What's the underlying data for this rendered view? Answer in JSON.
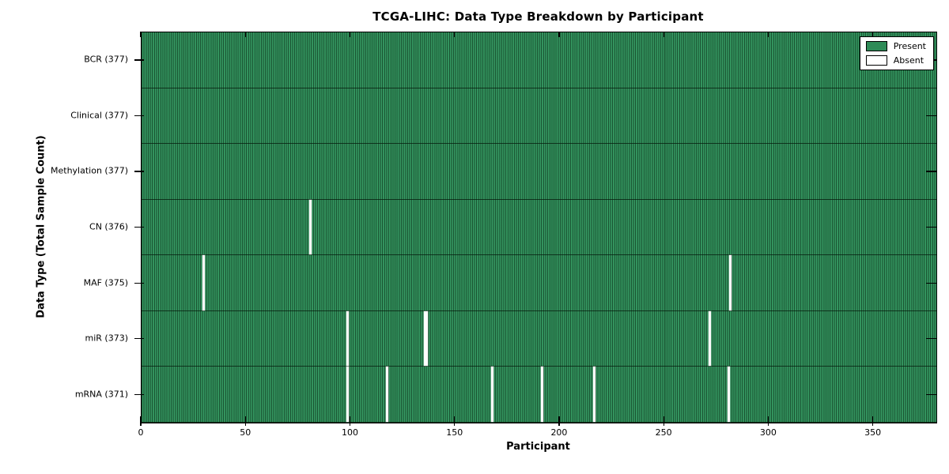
{
  "title": "TCGA-LIHC: Data Type Breakdown by Participant",
  "colors": {
    "present_fill": "#2e8b57",
    "stripe_light": "#3a9f68",
    "stripe_dark": "#1a5432",
    "absent_fill": "#ffffff",
    "row_divider": "#0a1f12",
    "axis": "#000000"
  },
  "legend": {
    "present_label": "Present",
    "absent_label": "Absent"
  },
  "chart_data": {
    "type": "heatmap",
    "title": "TCGA-LIHC: Data Type Breakdown by Participant",
    "xlabel": "Participant",
    "ylabel": "Data Type (Total Sample Count)",
    "x_ticks": [
      0,
      50,
      100,
      150,
      200,
      250,
      300,
      350
    ],
    "x_max": 380,
    "n_participants": 377,
    "grid": false,
    "legend_position": "upper right",
    "legend_entries": [
      {
        "label": "Present",
        "color": "#2e8b57"
      },
      {
        "label": "Absent",
        "color": "#ffffff"
      }
    ],
    "rows": [
      {
        "label": "BCR (377)",
        "data_type": "BCR",
        "total": 377,
        "absent_participants": []
      },
      {
        "label": "Clinical (377)",
        "data_type": "Clinical",
        "total": 377,
        "absent_participants": []
      },
      {
        "label": "Methylation (377)",
        "data_type": "Methylation",
        "total": 377,
        "absent_participants": []
      },
      {
        "label": "CN (376)",
        "data_type": "CN",
        "total": 376,
        "absent_participants": [
          80
        ]
      },
      {
        "label": "MAF (375)",
        "data_type": "MAF",
        "total": 375,
        "absent_participants": [
          29,
          281
        ]
      },
      {
        "label": "miR (373)",
        "data_type": "miR",
        "total": 373,
        "absent_participants": [
          98,
          135,
          136,
          271
        ]
      },
      {
        "label": "mRNA (371)",
        "data_type": "mRNA",
        "total": 371,
        "absent_participants": [
          98,
          117,
          167,
          191,
          216,
          280
        ]
      }
    ]
  }
}
